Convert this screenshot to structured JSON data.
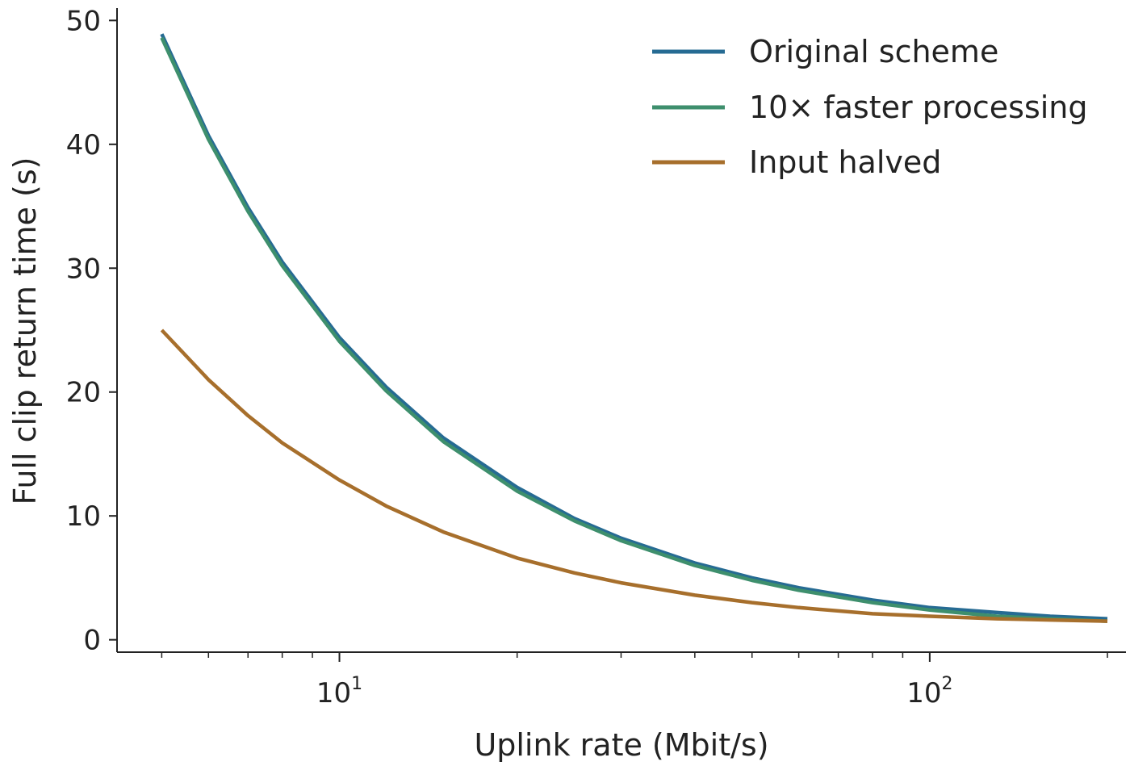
{
  "chart_data": {
    "type": "line",
    "title": "",
    "xlabel": "Uplink rate (Mbit/s)",
    "ylabel": "Full clip return time (s)",
    "xscale": "log",
    "xlim": [
      4.2,
      215
    ],
    "ylim": [
      -1,
      51
    ],
    "grid": false,
    "legend_position": "top-right",
    "y_ticks": [
      0,
      10,
      20,
      30,
      40,
      50
    ],
    "x_ticks": [
      {
        "value": 10,
        "base": "10",
        "exponent": "1"
      },
      {
        "value": 100,
        "base": "10",
        "exponent": "2"
      }
    ],
    "x_minor_ticks": [
      5,
      6,
      7,
      8,
      9,
      20,
      30,
      40,
      50,
      60,
      70,
      80,
      90,
      200
    ],
    "series": [
      {
        "name": "Original scheme",
        "color": "#266b93",
        "x": [
          5,
          6,
          7,
          8,
          10,
          12,
          15,
          20,
          25,
          30,
          40,
          50,
          60,
          80,
          100,
          130,
          160,
          200
        ],
        "y": [
          48.9,
          40.7,
          34.9,
          30.5,
          24.4,
          20.4,
          16.3,
          12.3,
          9.8,
          8.2,
          6.2,
          5.0,
          4.2,
          3.2,
          2.6,
          2.2,
          1.9,
          1.7
        ]
      },
      {
        "name": "10× faster processing",
        "color": "#3e8f6d",
        "x": [
          5,
          6,
          7,
          8,
          10,
          12,
          15,
          20,
          25,
          30,
          40,
          50,
          60,
          80,
          100,
          130,
          160,
          200
        ],
        "y": [
          48.6,
          40.4,
          34.6,
          30.2,
          24.1,
          20.1,
          16.0,
          12.0,
          9.6,
          8.0,
          6.0,
          4.8,
          4.0,
          3.0,
          2.4,
          1.9,
          1.7,
          1.5
        ]
      },
      {
        "name": "Input halved",
        "color": "#a76f2c",
        "x": [
          5,
          6,
          7,
          8,
          10,
          12,
          15,
          20,
          25,
          30,
          40,
          50,
          60,
          80,
          100,
          130,
          160,
          200
        ],
        "y": [
          25.0,
          21.0,
          18.1,
          15.9,
          12.9,
          10.8,
          8.7,
          6.6,
          5.4,
          4.6,
          3.6,
          3.0,
          2.6,
          2.1,
          1.9,
          1.7,
          1.6,
          1.5
        ]
      }
    ]
  }
}
